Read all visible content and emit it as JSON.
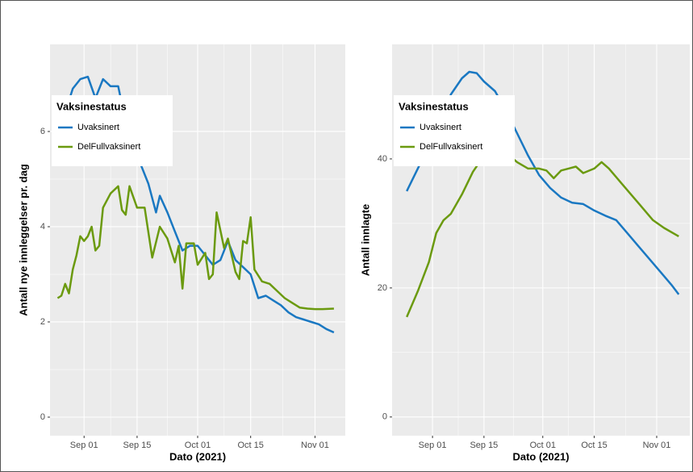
{
  "chart_data": [
    {
      "type": "line",
      "x_label": "Dato (2021)",
      "y_label": "Antall nye innleggelser pr. dag",
      "legend_title": "Vaksinestatus",
      "legend": "top-left",
      "grid": true,
      "xlim": [
        "2021-08-23",
        "2021-11-09"
      ],
      "ylim": [
        -0.39,
        7.83
      ],
      "yticks": [
        0,
        2,
        4,
        6
      ],
      "xticks": [
        {
          "value": "2021-09-01",
          "label": "Sep 01"
        },
        {
          "value": "2021-09-15",
          "label": "Sep 15"
        },
        {
          "value": "2021-10-01",
          "label": "Oct 01"
        },
        {
          "value": "2021-10-15",
          "label": "Oct 15"
        },
        {
          "value": "2021-11-01",
          "label": "Nov 01"
        }
      ],
      "series": [
        {
          "name": "Uvaksinert",
          "color": "#1a78c2",
          "x": [
            "2021-08-25",
            "2021-08-27",
            "2021-08-29",
            "2021-08-31",
            "2021-09-02",
            "2021-09-04",
            "2021-09-06",
            "2021-09-08",
            "2021-09-10",
            "2021-09-12",
            "2021-09-14",
            "2021-09-16",
            "2021-09-18",
            "2021-09-20",
            "2021-09-21",
            "2021-09-23",
            "2021-09-25",
            "2021-09-27",
            "2021-09-29",
            "2021-10-01",
            "2021-10-03",
            "2021-10-05",
            "2021-10-07",
            "2021-10-09",
            "2021-10-11",
            "2021-10-13",
            "2021-10-15",
            "2021-10-17",
            "2021-10-19",
            "2021-10-21",
            "2021-10-23",
            "2021-10-25",
            "2021-10-27",
            "2021-10-29",
            "2021-10-31",
            "2021-11-02",
            "2021-11-04",
            "2021-11-06"
          ],
          "values": [
            5.9,
            6.4,
            6.9,
            7.1,
            7.15,
            6.7,
            7.1,
            6.95,
            6.95,
            6.2,
            5.8,
            5.3,
            4.9,
            4.3,
            4.65,
            4.3,
            3.9,
            3.5,
            3.6,
            3.6,
            3.4,
            3.2,
            3.3,
            3.7,
            3.3,
            3.15,
            3.0,
            2.5,
            2.55,
            2.45,
            2.35,
            2.2,
            2.1,
            2.05,
            2.0,
            1.95,
            1.85,
            1.78
          ]
        },
        {
          "name": "DelFullvaksinert",
          "color": "#6b9a0f",
          "x": [
            "2021-08-25",
            "2021-08-26",
            "2021-08-27",
            "2021-08-28",
            "2021-08-29",
            "2021-08-30",
            "2021-08-31",
            "2021-09-01",
            "2021-09-02",
            "2021-09-03",
            "2021-09-04",
            "2021-09-05",
            "2021-09-06",
            "2021-09-08",
            "2021-09-10",
            "2021-09-11",
            "2021-09-12",
            "2021-09-13",
            "2021-09-15",
            "2021-09-17",
            "2021-09-19",
            "2021-09-21",
            "2021-09-23",
            "2021-09-25",
            "2021-09-26",
            "2021-09-27",
            "2021-09-28",
            "2021-09-30",
            "2021-10-01",
            "2021-10-03",
            "2021-10-04",
            "2021-10-05",
            "2021-10-06",
            "2021-10-08",
            "2021-10-09",
            "2021-10-11",
            "2021-10-12",
            "2021-10-13",
            "2021-10-14",
            "2021-10-15",
            "2021-10-16",
            "2021-10-18",
            "2021-10-20",
            "2021-10-22",
            "2021-10-24",
            "2021-10-26",
            "2021-10-28",
            "2021-10-30",
            "2021-11-01",
            "2021-11-03",
            "2021-11-06"
          ],
          "values": [
            2.5,
            2.55,
            2.8,
            2.6,
            3.1,
            3.4,
            3.8,
            3.7,
            3.8,
            4.0,
            3.5,
            3.6,
            4.4,
            4.7,
            4.85,
            4.35,
            4.25,
            4.85,
            4.4,
            4.4,
            3.35,
            4.0,
            3.75,
            3.25,
            3.6,
            2.7,
            3.65,
            3.65,
            3.2,
            3.45,
            2.9,
            3.0,
            4.3,
            3.55,
            3.75,
            3.05,
            2.9,
            3.7,
            3.65,
            4.2,
            3.1,
            2.85,
            2.8,
            2.65,
            2.5,
            2.4,
            2.3,
            2.28,
            2.27,
            2.27,
            2.28
          ]
        }
      ]
    },
    {
      "type": "line",
      "x_label": "Dato (2021)",
      "y_label": "Antall innlagte",
      "legend_title": "Vaksinestatus",
      "legend": "top-left",
      "grid": true,
      "xlim": [
        "2021-08-21",
        "2021-11-10"
      ],
      "ylim": [
        -2.9,
        57.75
      ],
      "yticks": [
        0,
        20,
        40
      ],
      "xticks": [
        {
          "value": "2021-09-01",
          "label": "Sep 01"
        },
        {
          "value": "2021-09-15",
          "label": "Sep 15"
        },
        {
          "value": "2021-10-01",
          "label": "Oct 01"
        },
        {
          "value": "2021-10-15",
          "label": "Oct 15"
        },
        {
          "value": "2021-11-01",
          "label": "Nov 01"
        }
      ],
      "series": [
        {
          "name": "Uvaksinert",
          "color": "#1a78c2",
          "x": [
            "2021-08-25",
            "2021-08-28",
            "2021-08-31",
            "2021-09-03",
            "2021-09-06",
            "2021-09-09",
            "2021-09-11",
            "2021-09-13",
            "2021-09-15",
            "2021-09-18",
            "2021-09-21",
            "2021-09-24",
            "2021-09-27",
            "2021-09-30",
            "2021-10-03",
            "2021-10-06",
            "2021-10-09",
            "2021-10-12",
            "2021-10-15",
            "2021-10-18",
            "2021-10-21",
            "2021-10-24",
            "2021-10-27",
            "2021-10-30",
            "2021-11-02",
            "2021-11-05",
            "2021-11-07"
          ],
          "values": [
            35,
            38.5,
            42,
            46,
            50,
            52.5,
            53.5,
            53.3,
            52,
            50.5,
            47.5,
            44,
            40.5,
            37.5,
            35.5,
            34,
            33.2,
            33,
            32,
            31.2,
            30.5,
            28.5,
            26.5,
            24.5,
            22.5,
            20.5,
            19
          ]
        },
        {
          "name": "DelFullvaksinert",
          "color": "#6b9a0f",
          "x": [
            "2021-08-25",
            "2021-08-28",
            "2021-08-31",
            "2021-09-02",
            "2021-09-04",
            "2021-09-06",
            "2021-09-09",
            "2021-09-12",
            "2021-09-15",
            "2021-09-18",
            "2021-09-21",
            "2021-09-24",
            "2021-09-27",
            "2021-09-30",
            "2021-10-02",
            "2021-10-04",
            "2021-10-06",
            "2021-10-08",
            "2021-10-10",
            "2021-10-12",
            "2021-10-15",
            "2021-10-17",
            "2021-10-19",
            "2021-10-22",
            "2021-10-25",
            "2021-10-28",
            "2021-10-31",
            "2021-11-03",
            "2021-11-07"
          ],
          "values": [
            15.5,
            19.5,
            24,
            28.5,
            30.5,
            31.5,
            34.5,
            38,
            40.5,
            41.5,
            41,
            39.5,
            38.5,
            38.5,
            38.2,
            37,
            38.2,
            38.5,
            38.8,
            37.8,
            38.5,
            39.5,
            38.5,
            36.5,
            34.5,
            32.5,
            30.5,
            29.3,
            28
          ]
        }
      ]
    }
  ]
}
